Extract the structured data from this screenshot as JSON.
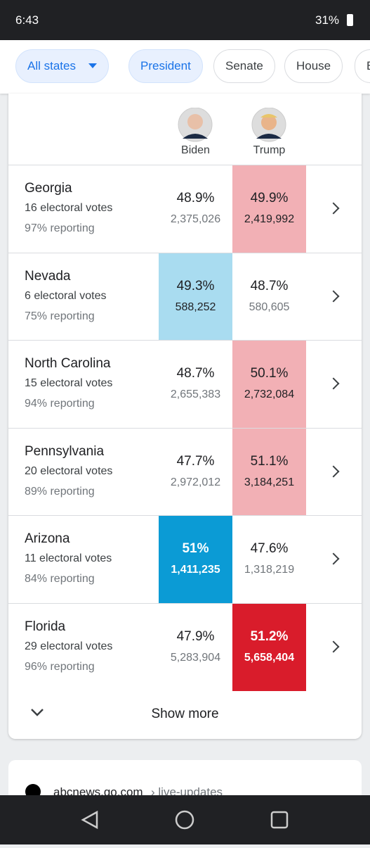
{
  "status_bar": {
    "time": "6:43",
    "battery": "31%"
  },
  "tabs": [
    {
      "label": "All states",
      "selected": true
    },
    {
      "label": "President",
      "selected": true
    },
    {
      "label": "Senate",
      "selected": false
    },
    {
      "label": "House",
      "selected": false
    },
    {
      "label": "B",
      "selected": false
    }
  ],
  "candidates": [
    "Biden",
    "Trump"
  ],
  "rows": [
    {
      "state": "Georgia",
      "electoral": "16 electoral votes",
      "reporting": "97% reporting",
      "results": [
        {
          "pct": "48.9%",
          "votes": "2,375,026"
        },
        {
          "pct": "49.9%",
          "votes": "2,419,992"
        }
      ],
      "leader": 1,
      "color": "#f2b0b5",
      "strong": false
    },
    {
      "state": "Nevada",
      "electoral": "6 electoral votes",
      "reporting": "75% reporting",
      "results": [
        {
          "pct": "49.3%",
          "votes": "588,252"
        },
        {
          "pct": "48.7%",
          "votes": "580,605"
        }
      ],
      "leader": 0,
      "color": "#a9dcf0",
      "strong": false
    },
    {
      "state": "North Carolina",
      "electoral": "15 electoral votes",
      "reporting": "94% reporting",
      "results": [
        {
          "pct": "48.7%",
          "votes": "2,655,383"
        },
        {
          "pct": "50.1%",
          "votes": "2,732,084"
        }
      ],
      "leader": 1,
      "color": "#f2b0b5",
      "strong": false
    },
    {
      "state": "Pennsylvania",
      "electoral": "20 electoral votes",
      "reporting": "89% reporting",
      "results": [
        {
          "pct": "47.7%",
          "votes": "2,972,012"
        },
        {
          "pct": "51.1%",
          "votes": "3,184,251"
        }
      ],
      "leader": 1,
      "color": "#f2b0b5",
      "strong": false
    },
    {
      "state": "Arizona",
      "electoral": "11 electoral votes",
      "reporting": "84% reporting",
      "results": [
        {
          "pct": "51%",
          "votes": "1,411,235"
        },
        {
          "pct": "47.6%",
          "votes": "1,318,219"
        }
      ],
      "leader": 0,
      "color": "#0b9bd5",
      "strong": true
    },
    {
      "state": "Florida",
      "electoral": "29 electoral votes",
      "reporting": "96% reporting",
      "results": [
        {
          "pct": "47.9%",
          "votes": "5,283,904"
        },
        {
          "pct": "51.2%",
          "votes": "5,658,404"
        }
      ],
      "leader": 1,
      "color": "#d91c2b",
      "strong": true
    }
  ],
  "show_more": "Show more",
  "source": {
    "site": "abcnews.go.com",
    "path": "› live-updates"
  }
}
